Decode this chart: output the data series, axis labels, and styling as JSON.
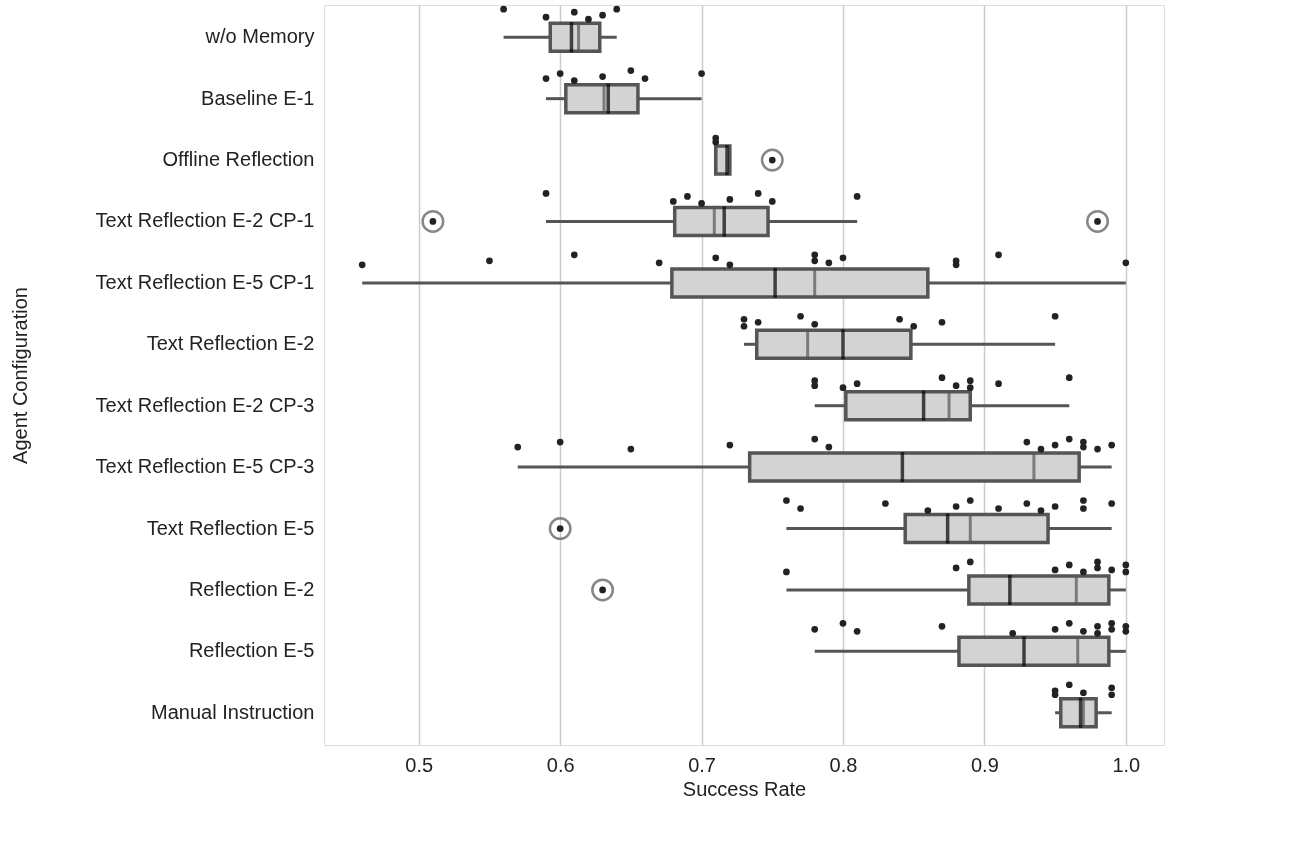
{
  "chart_data": {
    "type": "box",
    "orientation": "horizontal",
    "xlabel": "Success Rate",
    "ylabel": "Agent Configuration",
    "categories": [
      "w/o Memory",
      "Baseline E-1",
      "Offline Reflection",
      "Text Reflection E-2 CP-1",
      "Text Reflection E-5 CP-1",
      "Text Reflection E-2",
      "Text Reflection E-2 CP-3",
      "Text Reflection E-5 CP-3",
      "Text Reflection E-5",
      "Reflection E-2",
      "Reflection E-5",
      "Manual Instruction"
    ],
    "color": "#d3d3d3",
    "boxes": [
      {
        "low": 0.56,
        "q1": 0.593,
        "median": 0.613,
        "q3": 0.628,
        "high": 0.64,
        "mean": 0.608
      },
      {
        "low": 0.59,
        "q1": 0.604,
        "median": 0.631,
        "q3": 0.655,
        "high": 0.7,
        "mean": 0.634
      },
      {
        "low": 0.71,
        "q1": 0.71,
        "median": 0.71,
        "q3": 0.72,
        "high": 0.72,
        "mean": 0.718,
        "outliers": [
          0.75
        ]
      },
      {
        "low": 0.59,
        "q1": 0.681,
        "median": 0.709,
        "q3": 0.747,
        "high": 0.81,
        "mean": 0.716,
        "outliers": [
          0.51,
          0.98
        ]
      },
      {
        "low": 0.46,
        "q1": 0.679,
        "median": 0.78,
        "q3": 0.86,
        "high": 1.0,
        "mean": 0.752
      },
      {
        "low": 0.73,
        "q1": 0.739,
        "median": 0.775,
        "q3": 0.848,
        "high": 0.95,
        "mean": 0.8
      },
      {
        "low": 0.78,
        "q1": 0.802,
        "median": 0.875,
        "q3": 0.89,
        "high": 0.96,
        "mean": 0.857
      },
      {
        "low": 0.57,
        "q1": 0.734,
        "median": 0.935,
        "q3": 0.967,
        "high": 0.99,
        "mean": 0.842
      },
      {
        "low": 0.76,
        "q1": 0.844,
        "median": 0.89,
        "q3": 0.945,
        "high": 0.99,
        "mean": 0.874,
        "outliers": [
          0.6
        ]
      },
      {
        "low": 0.76,
        "q1": 0.889,
        "median": 0.965,
        "q3": 0.988,
        "high": 1.0,
        "mean": 0.918,
        "outliers": [
          0.63
        ]
      },
      {
        "low": 0.78,
        "q1": 0.882,
        "median": 0.966,
        "q3": 0.988,
        "high": 1.0,
        "mean": 0.928
      },
      {
        "low": 0.95,
        "q1": 0.954,
        "median": 0.97,
        "q3": 0.979,
        "high": 0.99,
        "mean": 0.968
      }
    ],
    "series": [
      {
        "type": "scatter",
        "color": "#222222",
        "x": [
          "w/o Memory",
          "w/o Memory",
          "w/o Memory",
          "w/o Memory",
          "w/o Memory",
          "w/o Memory",
          "Baseline E-1",
          "Baseline E-1",
          "Baseline E-1",
          "Baseline E-1",
          "Baseline E-1",
          "Baseline E-1",
          "Baseline E-1",
          "Offline Reflection",
          "Offline Reflection",
          "Text Reflection E-2 CP-1",
          "Text Reflection E-2 CP-1",
          "Text Reflection E-2 CP-1",
          "Text Reflection E-2 CP-1",
          "Text Reflection E-2 CP-1",
          "Text Reflection E-2 CP-1",
          "Text Reflection E-2 CP-1",
          "Text Reflection E-2 CP-1",
          "Text Reflection E-5 CP-1",
          "Text Reflection E-5 CP-1",
          "Text Reflection E-5 CP-1",
          "Text Reflection E-5 CP-1",
          "Text Reflection E-5 CP-1",
          "Text Reflection E-5 CP-1",
          "Text Reflection E-5 CP-1",
          "Text Reflection E-5 CP-1",
          "Text Reflection E-5 CP-1",
          "Text Reflection E-5 CP-1",
          "Text Reflection E-5 CP-1",
          "Text Reflection E-5 CP-1",
          "Text Reflection E-5 CP-1",
          "Text Reflection E-5 CP-1",
          "Text Reflection E-2",
          "Text Reflection E-2",
          "Text Reflection E-2",
          "Text Reflection E-2",
          "Text Reflection E-2",
          "Text Reflection E-2",
          "Text Reflection E-2",
          "Text Reflection E-2",
          "Text Reflection E-2",
          "Text Reflection E-2 CP-3",
          "Text Reflection E-2 CP-3",
          "Text Reflection E-2 CP-3",
          "Text Reflection E-2 CP-3",
          "Text Reflection E-2 CP-3",
          "Text Reflection E-2 CP-3",
          "Text Reflection E-2 CP-3",
          "Text Reflection E-2 CP-3",
          "Text Reflection E-2 CP-3",
          "Text Reflection E-2 CP-3",
          "Text Reflection E-5 CP-3",
          "Text Reflection E-5 CP-3",
          "Text Reflection E-5 CP-3",
          "Text Reflection E-5 CP-3",
          "Text Reflection E-5 CP-3",
          "Text Reflection E-5 CP-3",
          "Text Reflection E-5 CP-3",
          "Text Reflection E-5 CP-3",
          "Text Reflection E-5 CP-3",
          "Text Reflection E-5 CP-3",
          "Text Reflection E-5 CP-3",
          "Text Reflection E-5 CP-3",
          "Text Reflection E-5 CP-3",
          "Text Reflection E-5 CP-3",
          "Text Reflection E-5",
          "Text Reflection E-5",
          "Text Reflection E-5",
          "Text Reflection E-5",
          "Text Reflection E-5",
          "Text Reflection E-5",
          "Text Reflection E-5",
          "Text Reflection E-5",
          "Text Reflection E-5",
          "Text Reflection E-5",
          "Text Reflection E-5",
          "Text Reflection E-5",
          "Text Reflection E-5",
          "Reflection E-2",
          "Reflection E-2",
          "Reflection E-2",
          "Reflection E-2",
          "Reflection E-2",
          "Reflection E-2",
          "Reflection E-2",
          "Reflection E-2",
          "Reflection E-2",
          "Reflection E-2",
          "Reflection E-2",
          "Reflection E-5",
          "Reflection E-5",
          "Reflection E-5",
          "Reflection E-5",
          "Reflection E-5",
          "Reflection E-5",
          "Reflection E-5",
          "Reflection E-5",
          "Reflection E-5",
          "Reflection E-5",
          "Reflection E-5",
          "Reflection E-5",
          "Reflection E-5",
          "Reflection E-5",
          "Manual Instruction",
          "Manual Instruction",
          "Manual Instruction",
          "Manual Instruction",
          "Manual Instruction",
          "Manual Instruction"
        ],
        "values": [
          0.56,
          0.59,
          0.61,
          0.62,
          0.63,
          0.64,
          0.59,
          0.6,
          0.61,
          0.63,
          0.65,
          0.66,
          0.7,
          0.71,
          0.71,
          0.59,
          0.68,
          0.69,
          0.7,
          0.72,
          0.74,
          0.75,
          0.81,
          0.46,
          0.55,
          0.61,
          0.67,
          0.71,
          0.72,
          0.78,
          0.78,
          0.79,
          0.8,
          0.88,
          0.88,
          0.91,
          1.0,
          0.73,
          0.73,
          0.74,
          0.77,
          0.78,
          0.84,
          0.85,
          0.87,
          0.95,
          0.78,
          0.78,
          0.8,
          0.81,
          0.87,
          0.88,
          0.89,
          0.89,
          0.91,
          0.96,
          0.57,
          0.6,
          0.65,
          0.72,
          0.78,
          0.79,
          0.93,
          0.94,
          0.95,
          0.96,
          0.97,
          0.97,
          0.98,
          0.99,
          0.76,
          0.77,
          0.83,
          0.86,
          0.88,
          0.89,
          0.91,
          0.93,
          0.94,
          0.95,
          0.97,
          0.97,
          0.99,
          0.76,
          0.88,
          0.89,
          0.95,
          0.96,
          0.97,
          0.98,
          0.98,
          0.99,
          1.0,
          1.0,
          0.78,
          0.8,
          0.81,
          0.87,
          0.92,
          0.95,
          0.96,
          0.97,
          0.98,
          0.98,
          0.99,
          0.99,
          1.0,
          1.0,
          0.95,
          0.95,
          0.96,
          0.97,
          0.99,
          0.99
        ]
      }
    ],
    "xlim": [
      0.433,
      1.027
    ],
    "xticks": [
      0.5,
      0.6,
      0.7,
      0.8,
      0.9,
      {
        "value": 1.0,
        "label": "1.0"
      }
    ],
    "grid": "x"
  }
}
